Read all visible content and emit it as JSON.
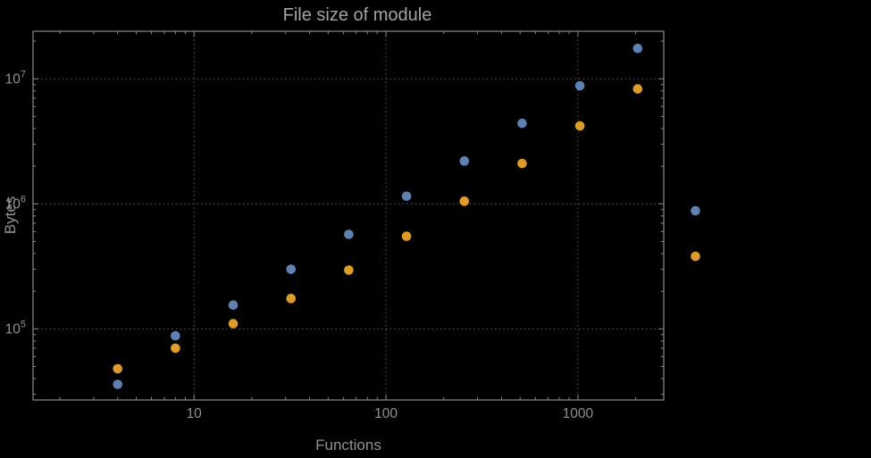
{
  "palette": {
    "background": "#000000",
    "frame": "#8a8a8a",
    "grid": "#5e5e5e",
    "text": "#919191",
    "title_text": "#a3a3a3",
    "series1": "#5e81b5",
    "series2": "#e19c24"
  },
  "chart_data": {
    "type": "scatter",
    "title": "File size of module",
    "xlabel": "Functions",
    "ylabel": "Bytes",
    "x_scale": "log",
    "y_scale": "log",
    "grid": true,
    "legend": false,
    "xlim": [
      1.45,
      2800
    ],
    "ylim": [
      27000,
      24000000
    ],
    "x": [
      4,
      8,
      16,
      32,
      64,
      128,
      256,
      512,
      1024,
      2048,
      4096
    ],
    "series": [
      {
        "name": "series-1-blue",
        "color": "#5e81b5",
        "values": [
          36000,
          88000,
          155000,
          300000,
          570000,
          1150000,
          2200000,
          4400000,
          8800000,
          17500000,
          880000
        ]
      },
      {
        "name": "series-2-orange",
        "color": "#e19c24",
        "values": [
          48000,
          70000,
          110000,
          175000,
          295000,
          550000,
          1050000,
          2100000,
          4200000,
          8300000,
          380000
        ]
      }
    ],
    "x_ticks": [
      {
        "value": 10,
        "label": "10"
      },
      {
        "value": 100,
        "label": "100"
      },
      {
        "value": 1000,
        "label": "1000"
      }
    ],
    "y_ticks": [
      {
        "value": 100000,
        "mantissa": "10",
        "exponent": "5"
      },
      {
        "value": 1000000,
        "mantissa": "10",
        "exponent": "6"
      },
      {
        "value": 10000000,
        "mantissa": "10",
        "exponent": "7"
      }
    ]
  }
}
